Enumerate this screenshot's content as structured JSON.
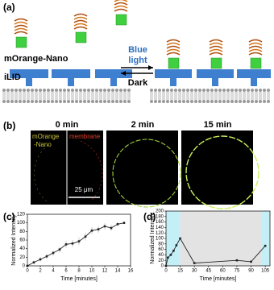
{
  "panel_labels": [
    "(a)",
    "(b)",
    "(c)",
    "(d)"
  ],
  "diagram": {
    "protein_label": "mOrange-Nano",
    "receptor_label": "iLID",
    "forward_label_lines": [
      "Blue",
      "light"
    ],
    "reverse_label": "Dark"
  },
  "images": {
    "time_labels": [
      "0 min",
      "2 min",
      "15 min"
    ],
    "green_channel_lines": [
      "mOrange",
      "-Nano"
    ],
    "red_channel_label": "membrane",
    "scale_label": "25 μm"
  },
  "chart_data": [
    {
      "type": "line",
      "xlabel": "Time [minutes]",
      "ylabel": "Normalized Intensity",
      "color": "#222222",
      "x": [
        0,
        1,
        2,
        3,
        4,
        5,
        6,
        7,
        8,
        9,
        10,
        11,
        12,
        13,
        14,
        15
      ],
      "values": [
        0,
        8,
        15,
        22,
        30,
        38,
        50,
        52,
        57,
        68,
        82,
        85,
        92,
        88,
        97,
        100
      ],
      "errors": [
        2,
        4,
        5,
        6,
        6,
        7,
        8,
        8,
        9,
        9,
        8,
        8,
        7,
        7,
        5,
        3
      ],
      "xlim": [
        0,
        16
      ],
      "ylim": [
        0,
        120
      ],
      "xticks": [
        0,
        2,
        4,
        6,
        8,
        10,
        12,
        14,
        16
      ],
      "yticks": [
        0,
        20,
        40,
        60,
        80,
        100,
        120
      ]
    },
    {
      "type": "line",
      "xlabel": "Time [minutes]",
      "ylabel": "Normalized Intensity",
      "color": "#222222",
      "x": [
        0,
        2,
        5,
        8,
        11,
        15,
        30,
        75,
        90,
        105
      ],
      "values": [
        0,
        30,
        40,
        55,
        75,
        100,
        10,
        20,
        15,
        73
      ],
      "background_bands": [
        {
          "xlim": [
            0,
            15
          ],
          "color": "#c4eff7"
        },
        {
          "xlim": [
            15,
            101
          ],
          "color": "#e3e3e3"
        },
        {
          "xlim": [
            101,
            110
          ],
          "color": "#c4eff7"
        }
      ],
      "xlim": [
        0,
        110
      ],
      "ylim": [
        0,
        200
      ],
      "xticks": [
        0,
        15,
        30,
        45,
        60,
        75,
        90,
        105
      ],
      "yticks": [
        0,
        20,
        40,
        60,
        80,
        100,
        120,
        140,
        160,
        180,
        200
      ]
    }
  ]
}
